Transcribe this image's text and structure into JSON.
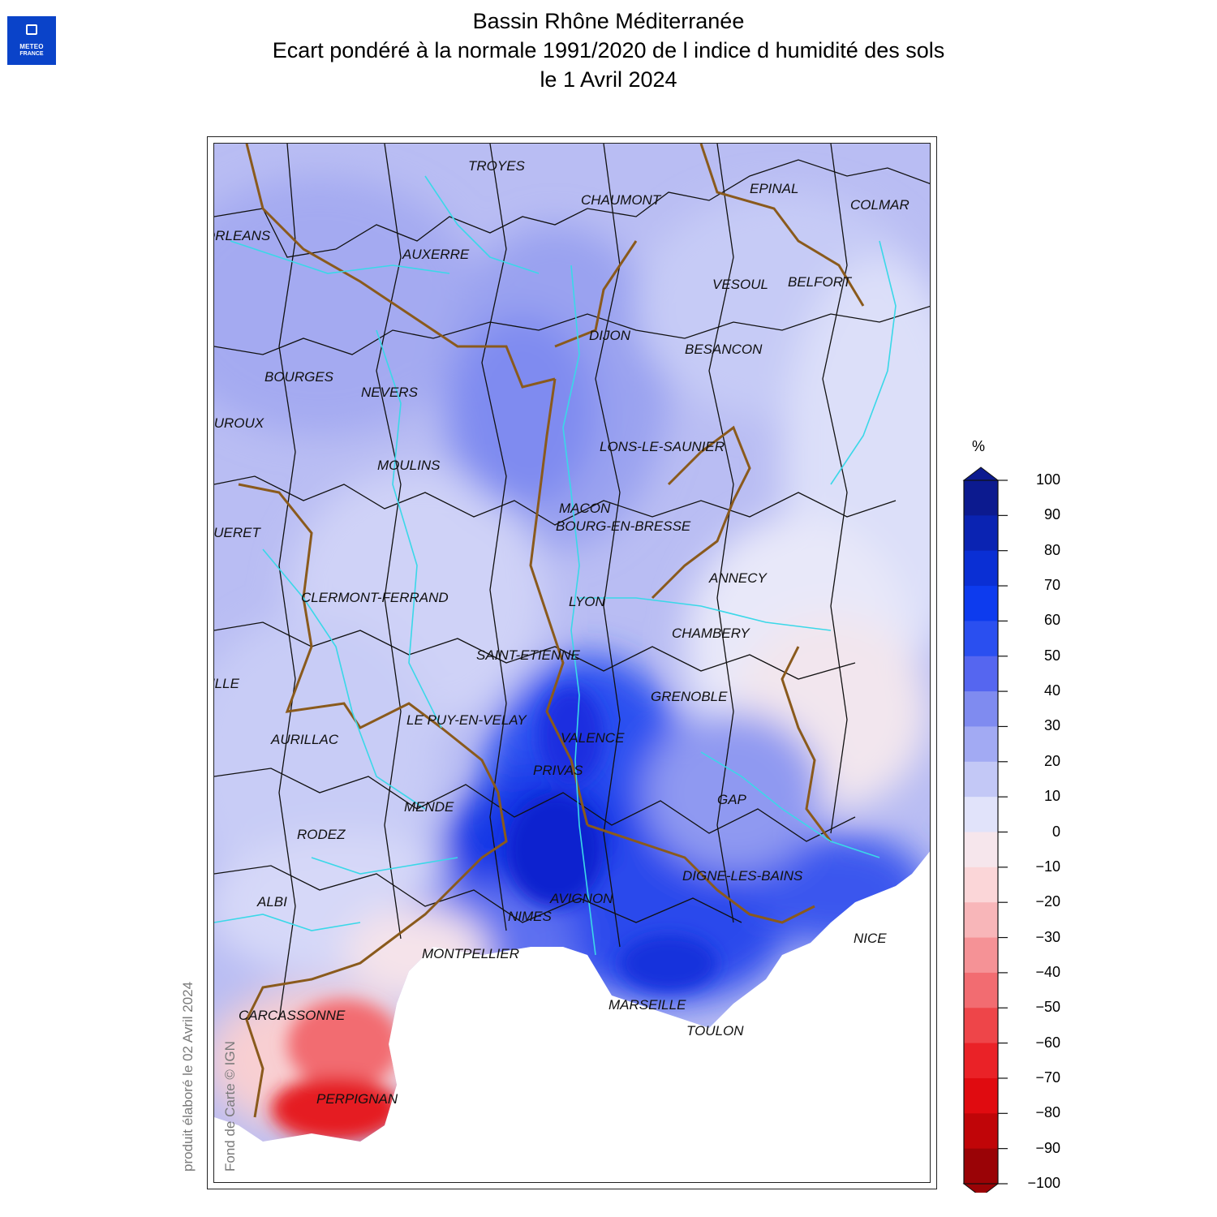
{
  "logo": {
    "line1": "METEO",
    "line2": "FRANCE"
  },
  "title": {
    "line1": "Bassin Rhône Méditerranée",
    "line2": "Ecart pondéré à la normale 1991/2020 de l indice d humidité des sols",
    "line3": "le 1 Avril 2024"
  },
  "credits": {
    "produced": "produit élaboré le 02 Avril 2024",
    "basemap": "Fond de Carte © IGN"
  },
  "map": {
    "cities": [
      {
        "name": "TROYES"
      },
      {
        "name": "CHAUMONT"
      },
      {
        "name": "EPINAL"
      },
      {
        "name": "COLMAR"
      },
      {
        "name": "ORLEANS"
      },
      {
        "name": "AUXERRE"
      },
      {
        "name": "VESOUL"
      },
      {
        "name": "BELFORT"
      },
      {
        "name": "DIJON"
      },
      {
        "name": "BESANCON"
      },
      {
        "name": "BOURGES"
      },
      {
        "name": "NEVERS"
      },
      {
        "name": "CHATEAUROUX"
      },
      {
        "name": "LONS-LE-SAUNIER"
      },
      {
        "name": "MOULINS"
      },
      {
        "name": "MACON"
      },
      {
        "name": "BOURG-EN-BRESSE"
      },
      {
        "name": "GUERET"
      },
      {
        "name": "ANNECY"
      },
      {
        "name": "CLERMONT-FERRAND"
      },
      {
        "name": "LYON"
      },
      {
        "name": "CHAMBERY"
      },
      {
        "name": "SAINT-ETIENNE"
      },
      {
        "name": "TULLE"
      },
      {
        "name": "GRENOBLE"
      },
      {
        "name": "LE PUY-EN-VELAY"
      },
      {
        "name": "AURILLAC"
      },
      {
        "name": "VALENCE"
      },
      {
        "name": "PRIVAS"
      },
      {
        "name": "GAP"
      },
      {
        "name": "MENDE"
      },
      {
        "name": "RODEZ"
      },
      {
        "name": "DIGNE-LES-BAINS"
      },
      {
        "name": "AVIGNON"
      },
      {
        "name": "ALBI"
      },
      {
        "name": "NIMES"
      },
      {
        "name": "NICE"
      },
      {
        "name": "MONTPELLIER"
      },
      {
        "name": "MARSEILLE"
      },
      {
        "name": "CARCASSONNE"
      },
      {
        "name": "TOULON"
      },
      {
        "name": "PERPIGNAN"
      }
    ]
  },
  "legend": {
    "unit": "%",
    "ticks": [
      "100",
      "90",
      "80",
      "70",
      "60",
      "50",
      "40",
      "30",
      "20",
      "10",
      "0",
      "−10",
      "−20",
      "−30",
      "−40",
      "−50",
      "−60",
      "−70",
      "−80",
      "−90",
      "−100"
    ],
    "colors": [
      "#0c1a8f",
      "#0a23b2",
      "#0a2fd4",
      "#0d3bee",
      "#2a4ff0",
      "#5566f0",
      "#7f8bf0",
      "#a2aaf3",
      "#c3c8f6",
      "#e1e3fa",
      "#f6e6ec",
      "#fbd6d8",
      "#f8b6b9",
      "#f59296",
      "#f26c71",
      "#ee4549",
      "#ea2227",
      "#e00b10",
      "#c00508",
      "#9a0306"
    ]
  }
}
